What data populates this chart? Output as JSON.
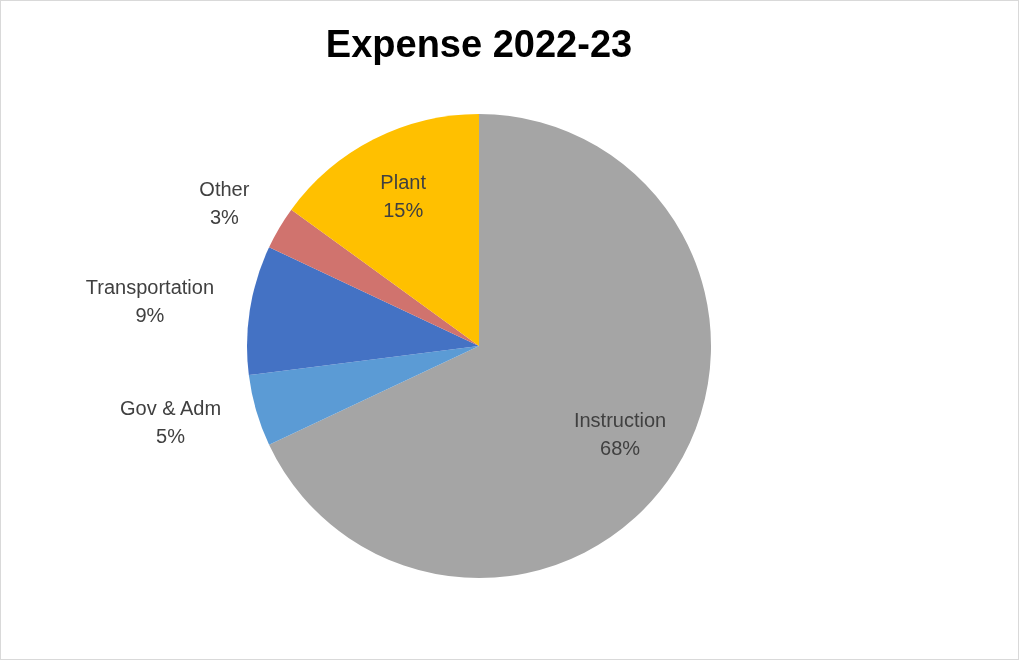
{
  "chart_data": {
    "type": "pie",
    "title": "Expense 2022-23",
    "categories": [
      "Instruction",
      "Gov & Adm",
      "Transportation",
      "Other",
      "Plant"
    ],
    "values": [
      68,
      5,
      9,
      3,
      15
    ],
    "value_labels": [
      "68%",
      "5%",
      "9%",
      "3%",
      "15%"
    ],
    "colors": [
      "#a5a5a5",
      "#5b9bd5",
      "#4472c4",
      "#d0736e",
      "#ffc000"
    ],
    "legend": false
  }
}
